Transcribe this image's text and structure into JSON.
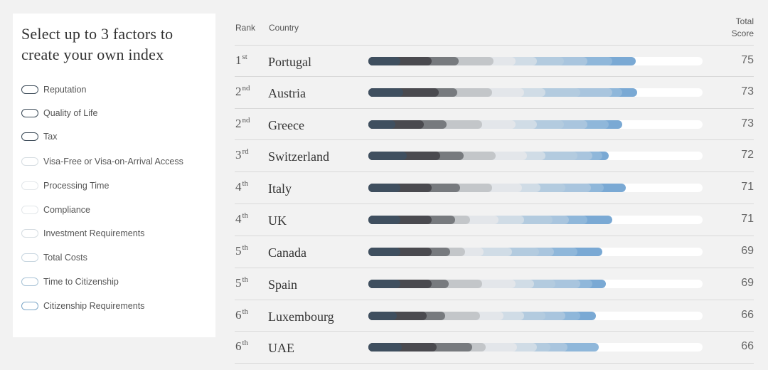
{
  "filter_panel": {
    "title": "Select up to 3 factors to create your own index",
    "factors": [
      {
        "label": "Reputation",
        "enabled": true
      },
      {
        "label": "Quality of Life",
        "enabled": true
      },
      {
        "label": "Tax",
        "enabled": true
      },
      {
        "label": "Visa-Free or Visa-on-Arrival Access",
        "enabled": false
      },
      {
        "label": "Processing Time",
        "enabled": false
      },
      {
        "label": "Compliance",
        "enabled": false
      },
      {
        "label": "Investment Requirements",
        "enabled": false
      },
      {
        "label": "Total Costs",
        "enabled": false
      },
      {
        "label": "Time to Citizenship",
        "enabled": false
      },
      {
        "label": "Citizenship Requirements",
        "enabled": false
      }
    ]
  },
  "table": {
    "headers": {
      "rank": "Rank",
      "country": "Country",
      "score_line1": "Total",
      "score_line2": "Score"
    },
    "rows": [
      {
        "rank": "1",
        "rank_suffix": "st",
        "country": "Portugal",
        "score": "75"
      },
      {
        "rank": "2",
        "rank_suffix": "nd",
        "country": "Austria",
        "score": "73"
      },
      {
        "rank": "2",
        "rank_suffix": "nd",
        "country": "Greece",
        "score": "73"
      },
      {
        "rank": "3",
        "rank_suffix": "rd",
        "country": "Switzerland",
        "score": "72"
      },
      {
        "rank": "4",
        "rank_suffix": "th",
        "country": "Italy",
        "score": "71"
      },
      {
        "rank": "4",
        "rank_suffix": "th",
        "country": "UK",
        "score": "71"
      },
      {
        "rank": "5",
        "rank_suffix": "th",
        "country": "Canada",
        "score": "69"
      },
      {
        "rank": "5",
        "rank_suffix": "th",
        "country": "Spain",
        "score": "69"
      },
      {
        "rank": "6",
        "rank_suffix": "th",
        "country": "Luxembourg",
        "score": "66"
      },
      {
        "rank": "6",
        "rank_suffix": "th",
        "country": "UAE",
        "score": "66"
      }
    ]
  },
  "bar_colors": [
    "#3f4f5f",
    "#4a4a4f",
    "#777a7e",
    "#c3c6c9",
    "#e3e6ea",
    "#d0dce6",
    "#b3cbdf",
    "#a9c5de",
    "#8fb7da",
    "#7aa9d4"
  ],
  "bar_segments": [
    [
      9.5,
      9.5,
      8,
      10.5,
      6.5,
      6.5,
      8,
      7,
      7.5,
      7
    ],
    [
      10.5,
      10.5,
      5.5,
      10.5,
      9.5,
      6.5,
      10.5,
      9.5,
      3,
      4.5
    ],
    [
      8,
      8.5,
      7,
      10.5,
      10,
      6.5,
      8,
      7,
      6.5,
      4
    ],
    [
      11.5,
      10,
      7,
      9.5,
      9.5,
      5.5,
      9.5,
      4.5,
      3,
      2
    ],
    [
      9.5,
      9.5,
      8.5,
      9.5,
      9,
      5.5,
      7.5,
      7.5,
      4,
      6.5
    ],
    [
      9.5,
      9.5,
      7,
      4.5,
      8.5,
      7.5,
      8.5,
      5,
      5.5,
      7.5
    ],
    [
      9.5,
      9.5,
      5.5,
      4.5,
      5.5,
      8.5,
      8,
      4.5,
      7,
      7.5
    ],
    [
      9.5,
      9.5,
      5,
      10,
      10,
      5.5,
      6.5,
      7.5,
      3.5,
      4
    ],
    [
      8.5,
      9,
      5.5,
      10.5,
      7,
      6,
      6.5,
      6,
      4.5,
      4.5
    ],
    [
      10,
      10.5,
      10.5,
      4,
      9.5,
      6,
      4,
      5,
      9.5,
      0
    ]
  ]
}
